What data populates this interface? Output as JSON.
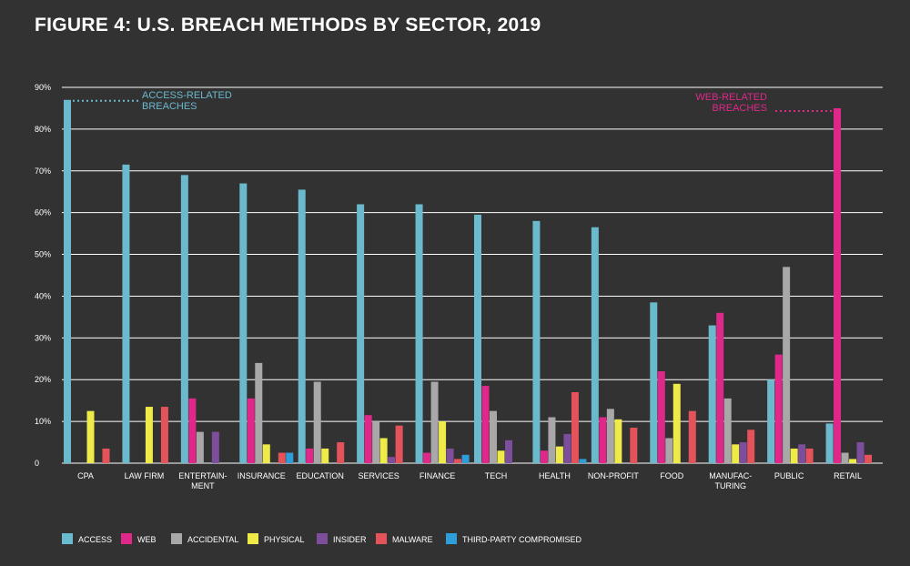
{
  "title": "FIGURE 4: U.S. BREACH METHODS BY SECTOR, 2019",
  "annotations": [
    {
      "lines": [
        "ACCESS-RELATED",
        "BREACHES"
      ],
      "color": "#6bb9cd",
      "category": "CPA",
      "series": "ACCESS"
    },
    {
      "lines": [
        "WEB-RELATED",
        "BREACHES"
      ],
      "color": "#e0288a",
      "category": "RETAIL",
      "series": "WEB"
    }
  ],
  "chart_data": {
    "type": "bar",
    "title": "FIGURE 4: U.S. BREACH METHODS BY SECTOR, 2019",
    "xlabel": "",
    "ylabel": "",
    "ylim": [
      0,
      90
    ],
    "yticks": [
      0,
      10,
      20,
      30,
      40,
      50,
      60,
      70,
      80,
      90
    ],
    "ytick_labels": [
      "0",
      "10%",
      "20%",
      "30%",
      "40%",
      "50%",
      "60%",
      "70%",
      "80%",
      "90%"
    ],
    "grid": true,
    "legend_position": "bottom",
    "categories": [
      [
        "CPA"
      ],
      [
        "LAW FIRM"
      ],
      [
        "ENTERTAIN-",
        "MENT"
      ],
      [
        "INSURANCE"
      ],
      [
        "EDUCATION"
      ],
      [
        "SERVICES"
      ],
      [
        "FINANCE"
      ],
      [
        "TECH"
      ],
      [
        "HEALTH"
      ],
      [
        "NON-PROFIT"
      ],
      [
        "FOOD"
      ],
      [
        "MANUFAC-",
        "TURING"
      ],
      [
        "PUBLIC"
      ],
      [
        "RETAIL"
      ]
    ],
    "category_names": [
      "CPA",
      "LAW FIRM",
      "ENTERTAINMENT",
      "INSURANCE",
      "EDUCATION",
      "SERVICES",
      "FINANCE",
      "TECH",
      "HEALTH",
      "NON-PROFIT",
      "FOOD",
      "MANUFACTURING",
      "PUBLIC",
      "RETAIL"
    ],
    "series": [
      {
        "name": "ACCESS",
        "color": "#6bb9cd",
        "values": [
          87,
          71.5,
          69,
          67,
          65.5,
          62,
          62,
          59.5,
          58,
          56.5,
          38.5,
          33,
          20,
          9.5
        ]
      },
      {
        "name": "WEB",
        "color": "#e0288a",
        "values": [
          0,
          0,
          15.5,
          15.5,
          3.5,
          11.5,
          2.5,
          18.5,
          3,
          11,
          22,
          36,
          26,
          85
        ]
      },
      {
        "name": "ACCIDENTAL",
        "color": "#a8a8a8",
        "values": [
          0,
          0,
          7.5,
          24,
          19.5,
          10,
          19.5,
          12.5,
          11,
          13,
          6,
          15.5,
          47,
          2.5
        ]
      },
      {
        "name": "PHYSICAL",
        "color": "#eeeb48",
        "values": [
          12.5,
          13.5,
          0,
          4.5,
          3.5,
          6,
          10,
          3,
          4,
          10.5,
          19,
          4.5,
          3.5,
          1
        ]
      },
      {
        "name": "INSIDER",
        "color": "#7d4e9b",
        "values": [
          0,
          0,
          7.5,
          0,
          0,
          1.5,
          3.5,
          5.5,
          7,
          0,
          0,
          5,
          4.5,
          5
        ]
      },
      {
        "name": "MALWARE",
        "color": "#e5535a",
        "values": [
          3.5,
          13.5,
          0,
          2.5,
          5,
          9,
          1,
          0,
          17,
          8.5,
          12.5,
          8,
          3.5,
          2
        ]
      },
      {
        "name": "THIRD-PARTY COMPROMISED",
        "color": "#2f9ed8",
        "values": [
          0,
          0,
          0,
          2.5,
          0,
          0,
          2,
          0,
          1,
          0,
          0,
          0,
          0,
          0
        ]
      }
    ]
  }
}
